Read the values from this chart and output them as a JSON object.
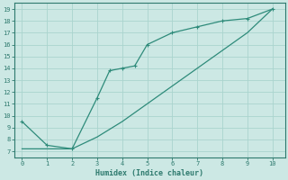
{
  "title": "",
  "xlabel": "Humidex (Indice chaleur)",
  "line1_x": [
    0,
    1,
    2,
    3,
    3.5,
    4,
    4.5,
    5,
    6,
    7,
    8,
    9,
    10
  ],
  "line1_y": [
    9.5,
    7.5,
    7.2,
    11.5,
    13.8,
    14.0,
    14.2,
    16.0,
    17.0,
    17.5,
    18.0,
    18.2,
    19.0
  ],
  "line2_x": [
    0,
    1,
    2,
    3,
    4,
    5,
    6,
    7,
    8,
    9,
    10
  ],
  "line2_y": [
    7.2,
    7.2,
    7.2,
    8.2,
    9.5,
    11.0,
    12.5,
    14.0,
    15.5,
    17.0,
    19.0
  ],
  "line_color": "#2e8b7a",
  "bg_color": "#cce8e4",
  "grid_color": "#aad4ce",
  "tick_color": "#2e7a6e",
  "axis_color": "#2e7a6e",
  "xlim": [
    -0.3,
    10.5
  ],
  "ylim": [
    6.5,
    19.5
  ],
  "yticks": [
    7,
    8,
    9,
    10,
    11,
    12,
    13,
    14,
    15,
    16,
    17,
    18,
    19
  ],
  "xticks": [
    0,
    1,
    2,
    3,
    4,
    5,
    6,
    7,
    8,
    9,
    10
  ],
  "tick_fontsize": 5.0,
  "xlabel_fontsize": 6.0
}
